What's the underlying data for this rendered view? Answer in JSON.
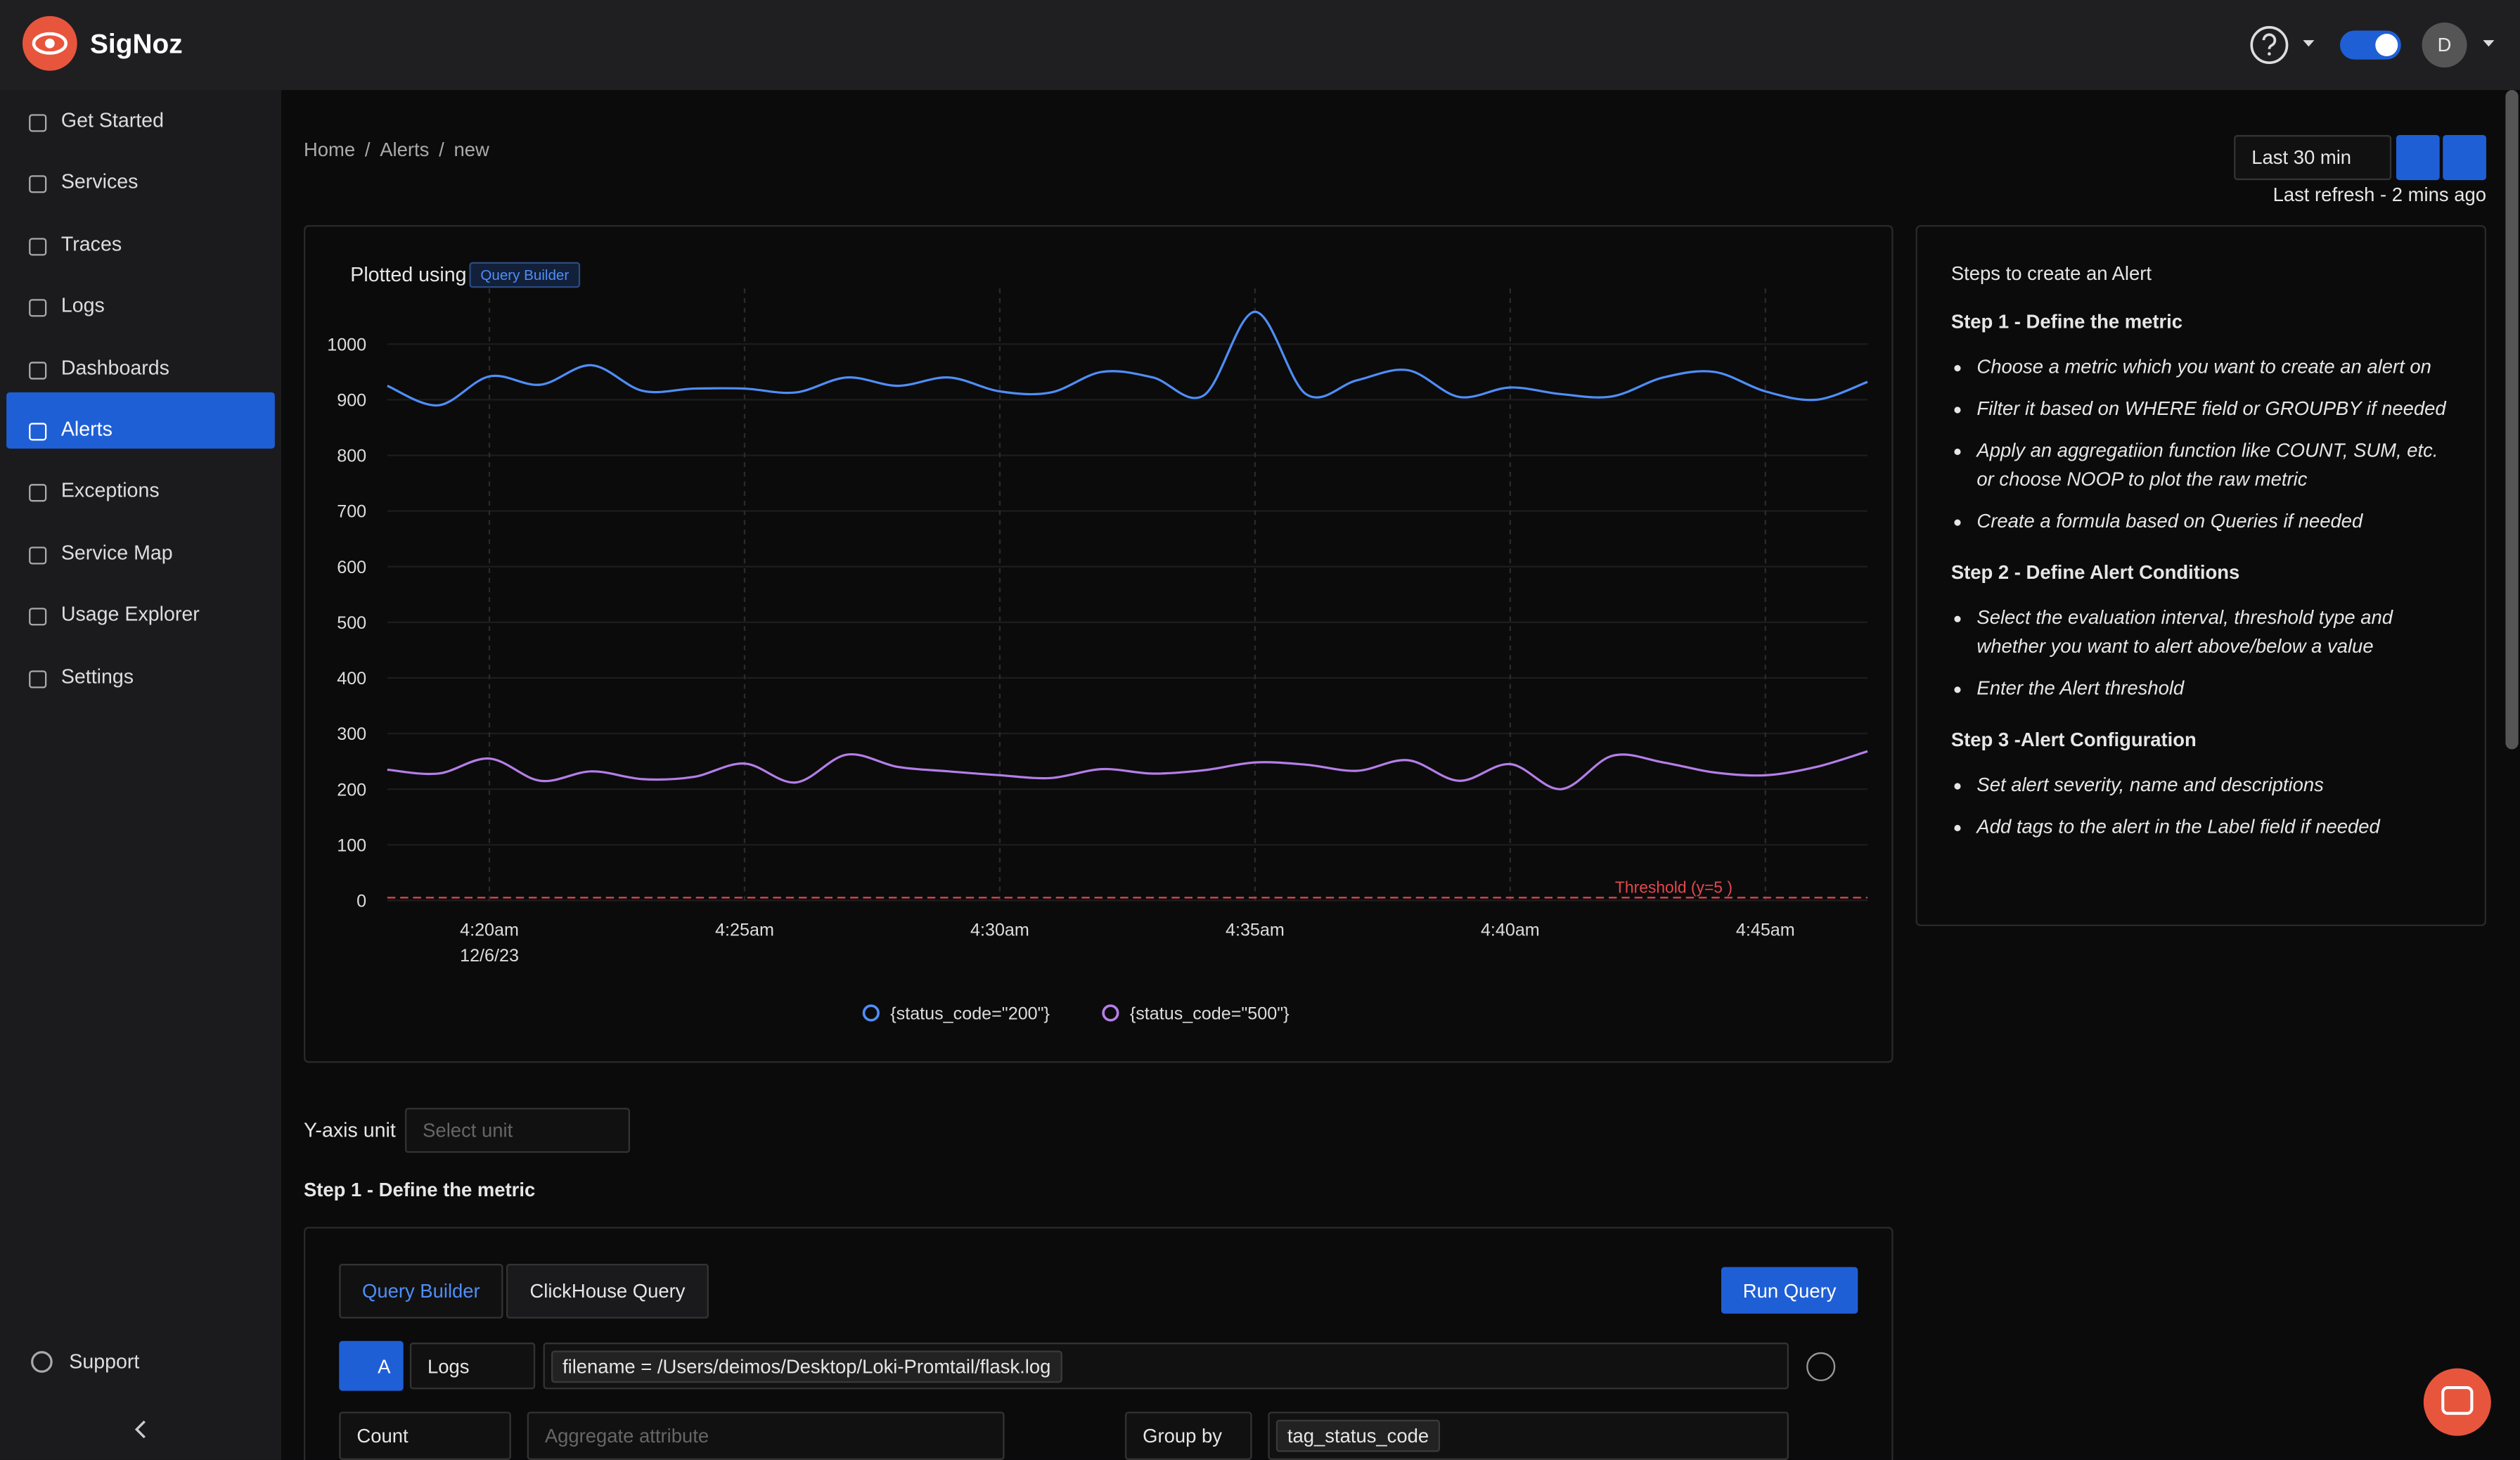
{
  "brand": "SigNoz",
  "nav": [
    "Get Started",
    "Services",
    "Traces",
    "Logs",
    "Dashboards",
    "Alerts",
    "Exceptions",
    "Service Map",
    "Usage Explorer",
    "Settings"
  ],
  "active_nav_index": 5,
  "support": "Support",
  "avatar": "D",
  "breadcrumb": [
    "Home",
    "Alerts",
    "new"
  ],
  "breadcrumb_separator": "/",
  "time_range": "Last 30 min",
  "last_refresh": "Last refresh - 2 mins ago",
  "plot_label": "Plotted using",
  "plot_badge": "Query Builder",
  "chart_data": {
    "type": "line",
    "x": [
      "4:18am",
      "4:19am",
      "4:20am",
      "4:21am",
      "4:22am",
      "4:23am",
      "4:24am",
      "4:25am",
      "4:26am",
      "4:27am",
      "4:28am",
      "4:29am",
      "4:30am",
      "4:31am",
      "4:32am",
      "4:33am",
      "4:34am",
      "4:35am",
      "4:36am",
      "4:37am",
      "4:38am",
      "4:39am",
      "4:40am",
      "4:41am",
      "4:42am",
      "4:43am",
      "4:44am",
      "4:45am",
      "4:46am",
      "4:47am"
    ],
    "xticks": [
      "4:20am",
      "4:25am",
      "4:30am",
      "4:35am",
      "4:40am",
      "4:45am"
    ],
    "x_date_label": "12/6/23",
    "series": [
      {
        "name": "{status_code=\"200\"}",
        "color": "#4f8ef7",
        "values": [
          925,
          890,
          942,
          927,
          962,
          916,
          920,
          920,
          913,
          940,
          925,
          940,
          915,
          913,
          950,
          940,
          908,
          1058,
          910,
          935,
          953,
          905,
          922,
          910,
          906,
          940,
          950,
          915,
          900,
          932
        ]
      },
      {
        "name": "{status_code=\"500\"}",
        "color": "#b57ee8",
        "values": [
          235,
          228,
          255,
          215,
          232,
          218,
          222,
          246,
          212,
          262,
          240,
          232,
          225,
          220,
          236,
          228,
          234,
          248,
          244,
          233,
          252,
          215,
          245,
          200,
          260,
          248,
          230,
          225,
          240,
          268
        ]
      }
    ],
    "ylim": [
      0,
      1100
    ],
    "yticks": [
      0,
      100,
      200,
      300,
      400,
      500,
      600,
      700,
      800,
      900,
      1000
    ],
    "grid": true,
    "threshold": 5,
    "threshold_label": "Threshold (y=5 )",
    "threshold_color": "#e5484d",
    "legend": "bottom"
  },
  "steps_panel": {
    "title": "Steps to create an Alert",
    "sections": [
      {
        "heading": "Step 1 - Define the metric",
        "items": [
          "Choose a metric which you want to create an alert on",
          "Filter it based on WHERE field or GROUPBY if needed",
          "Apply an aggregatiion function like COUNT, SUM, etc. or choose NOOP to plot the raw metric",
          "Create a formula based on Queries if needed"
        ]
      },
      {
        "heading": "Step 2 - Define Alert Conditions",
        "items": [
          "Select the evaluation interval, threshold type and whether you want to alert above/below a value",
          "Enter the Alert threshold"
        ]
      },
      {
        "heading": "Step 3 -Alert Configuration",
        "items": [
          "Set alert severity, name and descriptions",
          "Add tags to the alert in the Label field if needed"
        ]
      }
    ]
  },
  "y_unit_label": "Y-axis unit",
  "y_unit_placeholder": "Select unit",
  "step1_heading": "Step 1 - Define the metric",
  "query": {
    "tabs": [
      "Query Builder",
      "ClickHouse Query"
    ],
    "run": "Run Query",
    "query_name": "A",
    "data_source": "Logs",
    "filter": "filename = /Users/deimos/Desktop/Loki-Promtail/flask.log",
    "aggregate": "Count",
    "aggregate_placeholder": "Aggregate attribute",
    "group_by_label": "Group by",
    "group_by": "tag_status_code"
  }
}
